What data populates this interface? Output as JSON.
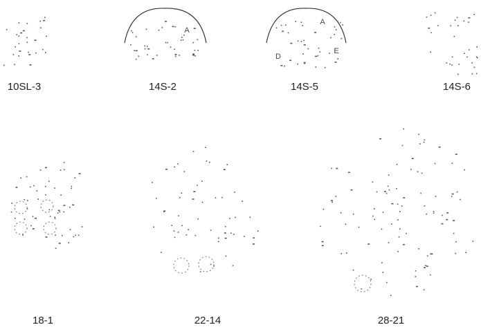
{
  "diagrams": [
    {
      "label": "10SL-3"
    },
    {
      "label": "14S-2",
      "pins": [
        "A"
      ]
    },
    {
      "label": "14S-5",
      "pins": [
        "A",
        "D",
        "E"
      ]
    },
    {
      "label": "14S-6"
    },
    {
      "label": "18-1"
    },
    {
      "label": "22-14"
    },
    {
      "label": "28-21"
    }
  ]
}
